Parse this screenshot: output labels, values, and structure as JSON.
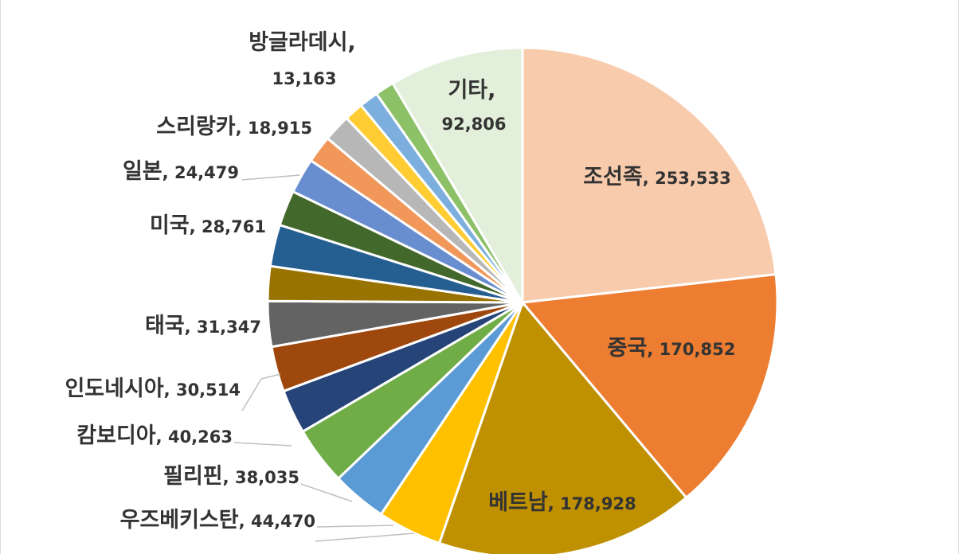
{
  "chart_data": {
    "type": "pie",
    "title": "",
    "slices": [
      {
        "label": "조선족",
        "value": 253533,
        "display": "253,533",
        "color": "#F8CBAD"
      },
      {
        "label": "중국",
        "value": 170852,
        "display": "170,852",
        "color": "#ED7D31"
      },
      {
        "label": "베트남",
        "value": 178928,
        "display": "178,928",
        "color": "#BF9000"
      },
      {
        "label": "",
        "value": 44470,
        "display": "",
        "color": "#FFC000"
      },
      {
        "label": "",
        "value": 38035,
        "display": "",
        "color": "#5B9BD5"
      },
      {
        "label": "",
        "value": 40263,
        "display": "",
        "color": "#70AD47"
      },
      {
        "label": "",
        "value": 30514,
        "display": "",
        "color": "#264478"
      },
      {
        "label": "",
        "value": 31347,
        "display": "",
        "color": "#9E480E"
      },
      {
        "label": "",
        "value": 31347,
        "display": "",
        "color": "#636363"
      },
      {
        "label": "",
        "value": 24000,
        "display": "",
        "color": "#997300"
      },
      {
        "label": "",
        "value": 28761,
        "display": "",
        "color": "#255E91"
      },
      {
        "label": "",
        "value": 24479,
        "display": "",
        "color": "#43682B"
      },
      {
        "label": "",
        "value": 24479,
        "display": "",
        "color": "#698ED0"
      },
      {
        "label": "",
        "value": 18915,
        "display": "",
        "color": "#F1975A"
      },
      {
        "label": "",
        "value": 18915,
        "display": "",
        "color": "#B7B7B7"
      },
      {
        "label": "",
        "value": 13163,
        "display": "",
        "color": "#FFCD33"
      },
      {
        "label": "",
        "value": 13163,
        "display": "",
        "color": "#7CAFDD"
      },
      {
        "label": "",
        "value": 13163,
        "display": "",
        "color": "#8CC168"
      },
      {
        "label": "기타",
        "value": 92806,
        "display": "92,806",
        "color": "#E2EFDA"
      }
    ],
    "external_labels": [
      {
        "label": "방글라데시",
        "display": "13,163"
      },
      {
        "label": "스리랑카",
        "display": "18,915"
      },
      {
        "label": "일본",
        "display": "24,479"
      },
      {
        "label": "미국",
        "display": "28,761"
      },
      {
        "label": "태국",
        "display": "31,347"
      },
      {
        "label": "인도네시아",
        "display": "30,514"
      },
      {
        "label": "캄보디아",
        "display": "40,263"
      },
      {
        "label": "필리핀",
        "display": "38,035"
      },
      {
        "label": "우즈베키스탄",
        "display": "44,470"
      }
    ],
    "legend": "none",
    "grid": false
  }
}
